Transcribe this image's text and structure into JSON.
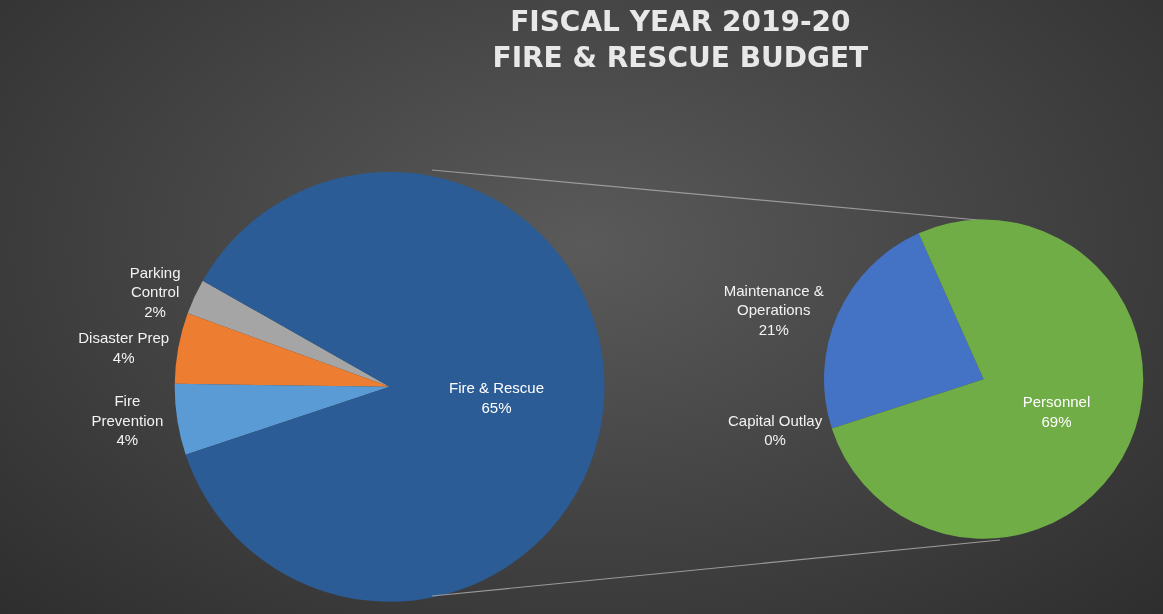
{
  "chart_data": [
    {
      "type": "pie",
      "title": "FISCAL YEAR 2019-20\nFIRE & RESCUE BUDGET",
      "categories": [
        "Parking Control",
        "Disaster Prep",
        "Fire Prevention",
        "Fire & Rescue"
      ],
      "values": [
        2,
        4,
        4,
        65
      ],
      "value_labels": [
        "2%",
        "4%",
        "4%",
        "65%"
      ],
      "colors": [
        "#a5a5a5",
        "#ed7d31",
        "#5b9bd5",
        "#2b5c95"
      ],
      "legend": false
    },
    {
      "type": "pie",
      "categories": [
        "Maintenance & Operations",
        "Personnel",
        "Capital Outlay"
      ],
      "values": [
        21,
        69,
        0
      ],
      "value_labels": [
        "21%",
        "69%",
        "0%"
      ],
      "colors": [
        "#4472c4",
        "#70ad47",
        "#ffc000"
      ],
      "legend": false
    }
  ]
}
